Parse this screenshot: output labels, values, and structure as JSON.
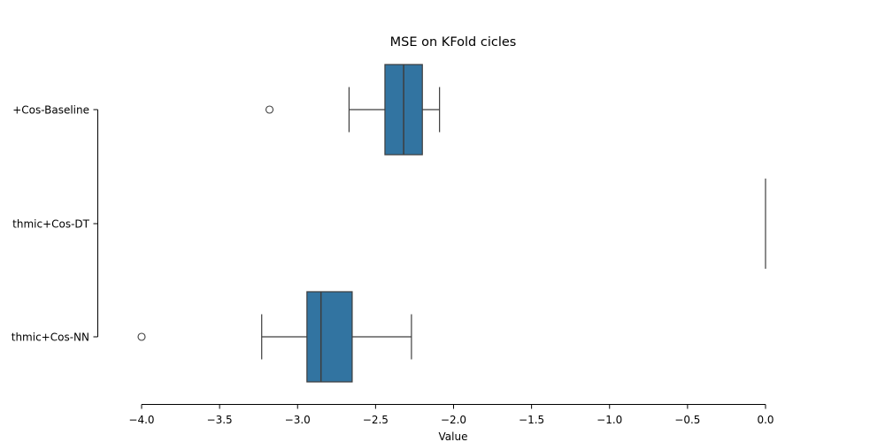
{
  "chart_data": {
    "type": "boxplot",
    "orientation": "horizontal",
    "title": "MSE on KFold cicles",
    "xlabel": "Value",
    "ylabel": "",
    "xlim": [
      -4.0,
      0.0
    ],
    "xticks": [
      -4.0,
      -3.5,
      -3.0,
      -2.5,
      -2.0,
      -1.5,
      -1.0,
      -0.5,
      0.0
    ],
    "xtick_labels": [
      "−4.0",
      "−3.5",
      "−3.0",
      "−2.5",
      "−2.0",
      "−1.5",
      "−1.0",
      "−0.5",
      "0.0"
    ],
    "grid": false,
    "box_color": "#3274a1",
    "line_color": "#3d3d3d",
    "categories": [
      "+Cos-Baseline",
      "thmic+Cos-DT",
      "thmic+Cos-NN"
    ],
    "boxes": [
      {
        "whisker_low": -2.67,
        "q1": -2.44,
        "median": -2.32,
        "q3": -2.2,
        "whisker_high": -2.09,
        "outliers": [
          -3.18
        ]
      },
      {
        "whisker_low": 0.0,
        "q1": 0.0,
        "median": 0.0,
        "q3": 0.0,
        "whisker_high": 0.0,
        "outliers": []
      },
      {
        "whisker_low": -3.23,
        "q1": -2.94,
        "median": -2.85,
        "q3": -2.65,
        "whisker_high": -2.27,
        "outliers": [
          -4.0
        ]
      }
    ]
  }
}
